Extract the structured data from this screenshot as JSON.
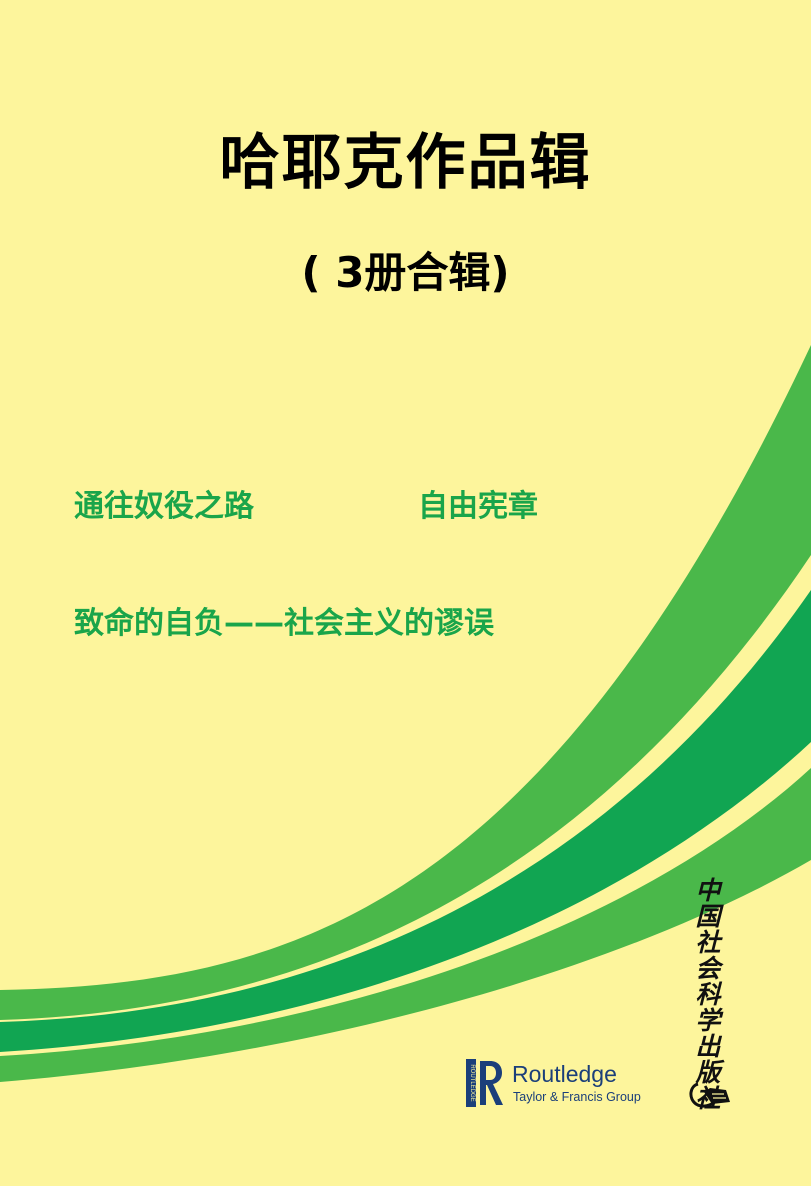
{
  "cover": {
    "title": "哈耶克作品辑",
    "subtitle": "( 3册合辑)",
    "books": [
      "通往奴役之路",
      "自由宪章",
      "致命的自负——社会主义的谬误"
    ],
    "publisher_name": "中国社会科学出版社",
    "routledge": {
      "name": "Routledge",
      "group": "Taylor & Francis Group",
      "vertical_wordmark": "ROUTLEDGE"
    }
  },
  "colors": {
    "background": "#fdf59c",
    "light_green": "#4ab84a",
    "dark_green": "#11a552",
    "title_text": "#000000",
    "book_text": "#1aa54a",
    "routledge_blue": "#1b3f7a"
  }
}
